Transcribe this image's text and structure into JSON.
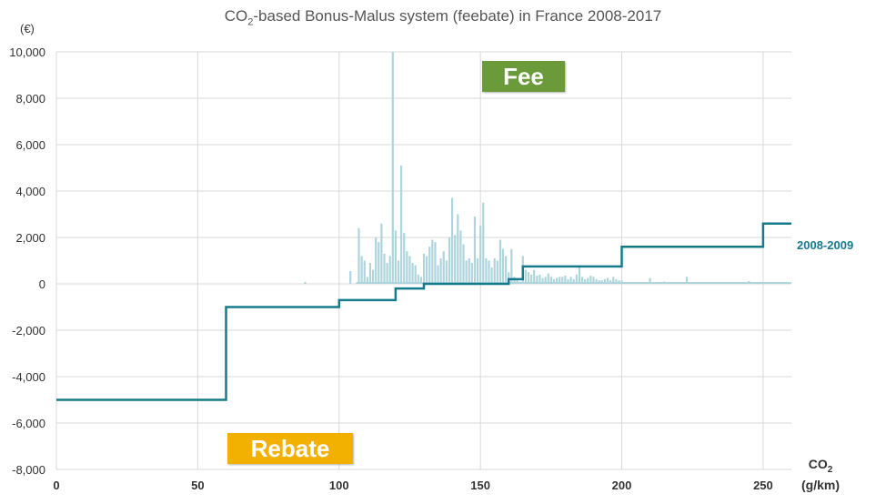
{
  "chart_data": {
    "type": "line",
    "title": {
      "prefix": "CO",
      "subscript": "2",
      "suffix": "-based Bonus-Malus system (feebate) in France 2008-2017"
    },
    "ylabel": "(€)",
    "xlabel": {
      "main": "CO",
      "subscript": "2",
      "unit": "(g/km)"
    },
    "xlim": [
      0,
      260
    ],
    "ylim": [
      -8000,
      10000
    ],
    "x_ticks": [
      0,
      50,
      100,
      150,
      200,
      250
    ],
    "x_tick_labels": [
      "0",
      "50",
      "100",
      "150",
      "200",
      "250"
    ],
    "y_ticks": [
      -8000,
      -6000,
      -4000,
      -2000,
      0,
      2000,
      4000,
      6000,
      8000,
      10000
    ],
    "y_tick_labels": [
      "-8,000",
      "-6,000",
      "-4,000",
      "-2,000",
      "0",
      "2,000",
      "4,000",
      "6,000",
      "8,000",
      "10,000"
    ],
    "grid": true,
    "annotations": {
      "fee": "Fee",
      "rebate": "Rebate"
    },
    "series": [
      {
        "name": "2008-2009",
        "type": "step",
        "color": "#157a8c",
        "points": [
          [
            0,
            -5000
          ],
          [
            60,
            -5000
          ],
          [
            60,
            -1000
          ],
          [
            100,
            -1000
          ],
          [
            100,
            -700
          ],
          [
            120,
            -700
          ],
          [
            120,
            -200
          ],
          [
            130,
            -200
          ],
          [
            130,
            0
          ],
          [
            160,
            0
          ],
          [
            160,
            200
          ],
          [
            165,
            200
          ],
          [
            165,
            750
          ],
          [
            200,
            750
          ],
          [
            200,
            1600
          ],
          [
            250,
            1600
          ],
          [
            250,
            2600
          ],
          [
            260,
            2600
          ]
        ]
      },
      {
        "name": "",
        "type": "bar",
        "color": "#aed4dc",
        "x": [
          88,
          104,
          107,
          108,
          109,
          110,
          111,
          112,
          113,
          114,
          115,
          116,
          117,
          118,
          119,
          120,
          121,
          122,
          123,
          124,
          125,
          126,
          127,
          128,
          129,
          130,
          131,
          132,
          133,
          134,
          135,
          136,
          137,
          138,
          139,
          140,
          141,
          142,
          143,
          144,
          145,
          146,
          147,
          148,
          149,
          150,
          151,
          152,
          153,
          154,
          155,
          156,
          157,
          158,
          159,
          160,
          161,
          162,
          163,
          164,
          165,
          166,
          167,
          168,
          169,
          170,
          171,
          172,
          173,
          174,
          175,
          176,
          177,
          178,
          179,
          180,
          181,
          182,
          183,
          184,
          185,
          186,
          187,
          188,
          189,
          190,
          191,
          192,
          193,
          194,
          195,
          196,
          197,
          198,
          199,
          200,
          210,
          215,
          220,
          223,
          230,
          245
        ],
        "values": [
          80,
          550,
          2400,
          1200,
          1000,
          300,
          900,
          600,
          2000,
          1800,
          2600,
          1300,
          900,
          1200,
          10000,
          2300,
          1000,
          5100,
          2200,
          1400,
          1200,
          900,
          800,
          400,
          300,
          1300,
          1200,
          1600,
          1900,
          1800,
          800,
          1100,
          1400,
          1000,
          2000,
          3700,
          2100,
          3000,
          2300,
          1700,
          1000,
          1100,
          900,
          2900,
          1100,
          2500,
          3500,
          1100,
          1000,
          700,
          1100,
          1000,
          1900,
          1500,
          1200,
          500,
          1500,
          300,
          200,
          100,
          1200,
          600,
          500,
          400,
          600,
          350,
          400,
          250,
          300,
          450,
          300,
          200,
          250,
          300,
          300,
          350,
          200,
          300,
          200,
          400,
          800,
          300,
          200,
          250,
          350,
          300,
          200,
          150,
          150,
          200,
          250,
          150,
          300,
          200,
          150,
          150,
          250,
          100,
          80,
          300,
          50,
          120
        ]
      }
    ]
  }
}
